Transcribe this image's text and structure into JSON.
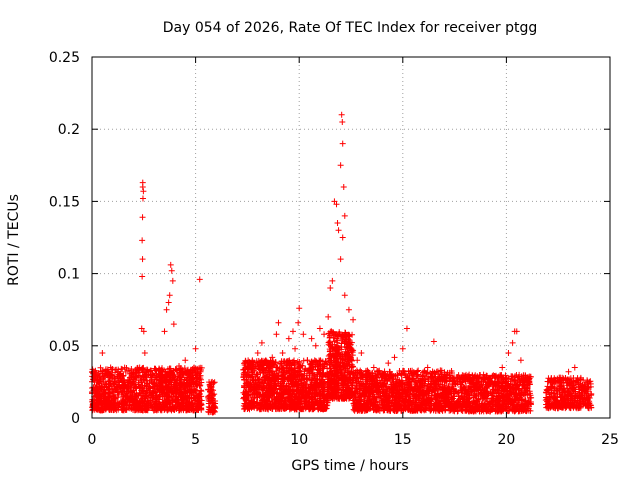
{
  "chart_data": {
    "type": "scatter",
    "title": "Day 054 of 2026, Rate Of TEC Index for receiver ptgg",
    "xlabel": "GPS time / hours",
    "ylabel": "ROTI / TECUs",
    "xlim": [
      0,
      25
    ],
    "ylim": [
      0,
      0.25
    ],
    "xticks": [
      0,
      5,
      10,
      15,
      20,
      25
    ],
    "xtick_labels": [
      "0",
      "5",
      "10",
      "15",
      "20",
      "25"
    ],
    "yticks": [
      0,
      0.05,
      0.1,
      0.15,
      0.2,
      0.25
    ],
    "ytick_labels": [
      "0",
      "0.05",
      "0.1",
      "0.15",
      "0.2",
      "0.25"
    ],
    "grid": true,
    "marker": "+",
    "color": "#ff0000",
    "series": [
      {
        "name": "ROTI",
        "points": [
          [
            0.1,
            0.012
          ],
          [
            0.3,
            0.028
          ],
          [
            0.5,
            0.045
          ],
          [
            0.7,
            0.022
          ],
          [
            0.9,
            0.035
          ],
          [
            1.1,
            0.018
          ],
          [
            1.3,
            0.03
          ],
          [
            1.5,
            0.025
          ],
          [
            1.7,
            0.02
          ],
          [
            1.9,
            0.029
          ],
          [
            2.1,
            0.022
          ],
          [
            2.3,
            0.035
          ],
          [
            2.45,
            0.163
          ],
          [
            2.45,
            0.16
          ],
          [
            2.48,
            0.157
          ],
          [
            2.46,
            0.152
          ],
          [
            2.44,
            0.139
          ],
          [
            2.42,
            0.123
          ],
          [
            2.44,
            0.11
          ],
          [
            2.42,
            0.098
          ],
          [
            2.4,
            0.062
          ],
          [
            2.5,
            0.06
          ],
          [
            2.55,
            0.045
          ],
          [
            2.7,
            0.03
          ],
          [
            2.9,
            0.025
          ],
          [
            3.1,
            0.033
          ],
          [
            3.3,
            0.03
          ],
          [
            3.5,
            0.06
          ],
          [
            3.6,
            0.075
          ],
          [
            3.7,
            0.08
          ],
          [
            3.75,
            0.085
          ],
          [
            3.8,
            0.106
          ],
          [
            3.85,
            0.102
          ],
          [
            3.9,
            0.095
          ],
          [
            3.95,
            0.065
          ],
          [
            4.2,
            0.036
          ],
          [
            4.5,
            0.04
          ],
          [
            4.8,
            0.025
          ],
          [
            5.0,
            0.048
          ],
          [
            5.2,
            0.096
          ],
          [
            5.1,
            0.032
          ],
          [
            5.8,
            0.025
          ],
          [
            5.7,
            0.018
          ],
          [
            7.5,
            0.03
          ],
          [
            7.8,
            0.02
          ],
          [
            8.0,
            0.045
          ],
          [
            8.2,
            0.052
          ],
          [
            8.5,
            0.035
          ],
          [
            8.7,
            0.042
          ],
          [
            8.9,
            0.058
          ],
          [
            9.0,
            0.066
          ],
          [
            9.2,
            0.045
          ],
          [
            9.5,
            0.055
          ],
          [
            9.7,
            0.06
          ],
          [
            9.8,
            0.048
          ],
          [
            9.95,
            0.066
          ],
          [
            10.0,
            0.076
          ],
          [
            10.2,
            0.058
          ],
          [
            10.4,
            0.04
          ],
          [
            10.6,
            0.055
          ],
          [
            10.8,
            0.05
          ],
          [
            11.0,
            0.062
          ],
          [
            11.2,
            0.058
          ],
          [
            11.4,
            0.07
          ],
          [
            11.5,
            0.09
          ],
          [
            11.6,
            0.095
          ],
          [
            11.7,
            0.15
          ],
          [
            11.8,
            0.148
          ],
          [
            11.85,
            0.135
          ],
          [
            11.9,
            0.13
          ],
          [
            12.0,
            0.175
          ],
          [
            12.05,
            0.21
          ],
          [
            12.08,
            0.205
          ],
          [
            12.1,
            0.19
          ],
          [
            12.15,
            0.16
          ],
          [
            12.2,
            0.14
          ],
          [
            12.1,
            0.125
          ],
          [
            12.0,
            0.11
          ],
          [
            12.2,
            0.085
          ],
          [
            12.4,
            0.075
          ],
          [
            12.6,
            0.068
          ],
          [
            12.8,
            0.04
          ],
          [
            13.0,
            0.045
          ],
          [
            13.3,
            0.03
          ],
          [
            13.6,
            0.035
          ],
          [
            14.0,
            0.025
          ],
          [
            14.3,
            0.038
          ],
          [
            14.6,
            0.042
          ],
          [
            15.0,
            0.048
          ],
          [
            15.2,
            0.062
          ],
          [
            15.5,
            0.03
          ],
          [
            15.8,
            0.022
          ],
          [
            16.2,
            0.035
          ],
          [
            16.5,
            0.053
          ],
          [
            16.8,
            0.02
          ],
          [
            17.0,
            0.02
          ],
          [
            17.3,
            0.028
          ],
          [
            17.8,
            0.025
          ],
          [
            18.2,
            0.03
          ],
          [
            18.5,
            0.022
          ],
          [
            18.9,
            0.03
          ],
          [
            19.3,
            0.025
          ],
          [
            19.8,
            0.035
          ],
          [
            20.1,
            0.045
          ],
          [
            20.3,
            0.052
          ],
          [
            20.4,
            0.06
          ],
          [
            20.5,
            0.06
          ],
          [
            20.7,
            0.04
          ],
          [
            21.0,
            0.025
          ],
          [
            22.2,
            0.022
          ],
          [
            22.6,
            0.028
          ],
          [
            23.0,
            0.032
          ],
          [
            23.3,
            0.035
          ],
          [
            23.6,
            0.022
          ],
          [
            24.0,
            0.025
          ]
        ]
      }
    ],
    "bands": [
      {
        "x0": 0.0,
        "x1": 5.3,
        "y0": 0.0,
        "y1": 0.035
      },
      {
        "x0": 5.6,
        "x1": 5.95,
        "y0": 0.0,
        "y1": 0.025
      },
      {
        "x0": 7.3,
        "x1": 11.4,
        "y0": 0.0,
        "y1": 0.04
      },
      {
        "x0": 11.4,
        "x1": 12.6,
        "y0": 0.005,
        "y1": 0.06
      },
      {
        "x0": 12.6,
        "x1": 17.4,
        "y0": 0.0,
        "y1": 0.033
      },
      {
        "x0": 17.4,
        "x1": 21.2,
        "y0": 0.0,
        "y1": 0.03
      },
      {
        "x0": 21.9,
        "x1": 24.1,
        "y0": 0.003,
        "y1": 0.028
      }
    ]
  }
}
